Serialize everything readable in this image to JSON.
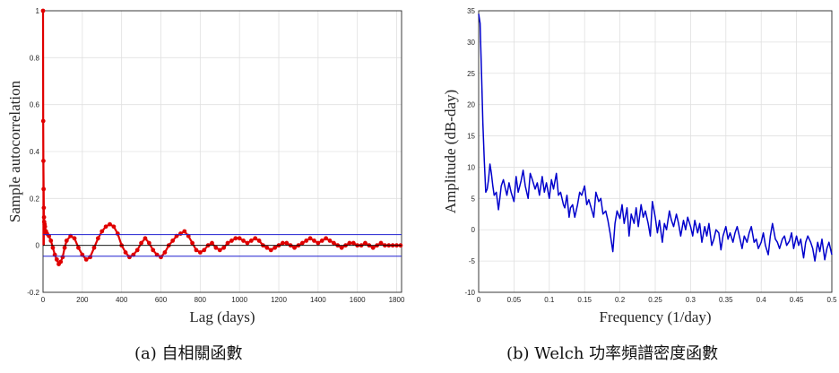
{
  "chart_data": [
    {
      "type": "scatter",
      "xlabel": "Lag (days)",
      "ylabel": "Sample autocorrelation",
      "xlim": [
        0,
        1825
      ],
      "ylim": [
        -0.2,
        1.0
      ],
      "xticks": [
        "0",
        "200",
        "400",
        "600",
        "800",
        "1000",
        "1200",
        "1400",
        "1600",
        "1800"
      ],
      "yticks": [
        "-0.2",
        "0",
        "0.2",
        "0.4",
        "0.6",
        "0.8",
        "1"
      ],
      "grid": true,
      "confidence_bounds": [
        0.046,
        -0.046
      ],
      "marker_color": "#e00000",
      "bound_color": "#2020d0",
      "caption": "(a) 自相關函數",
      "x": [
        0,
        1,
        2,
        3,
        4,
        5,
        6,
        8,
        10,
        15,
        20,
        30,
        40,
        50,
        60,
        70,
        80,
        90,
        100,
        110,
        120,
        140,
        160,
        180,
        200,
        220,
        240,
        260,
        280,
        300,
        320,
        340,
        360,
        380,
        400,
        420,
        440,
        460,
        480,
        500,
        520,
        540,
        560,
        580,
        600,
        620,
        640,
        660,
        680,
        700,
        720,
        740,
        760,
        780,
        800,
        820,
        840,
        860,
        880,
        900,
        920,
        940,
        960,
        980,
        1000,
        1020,
        1040,
        1060,
        1080,
        1100,
        1120,
        1140,
        1160,
        1180,
        1200,
        1220,
        1240,
        1260,
        1280,
        1300,
        1320,
        1340,
        1360,
        1380,
        1400,
        1420,
        1440,
        1460,
        1480,
        1500,
        1520,
        1540,
        1560,
        1580,
        1600,
        1620,
        1640,
        1660,
        1680,
        1700,
        1720,
        1740,
        1760,
        1780,
        1800,
        1820
      ],
      "y": [
        1.0,
        0.53,
        0.36,
        0.24,
        0.16,
        0.12,
        0.1,
        0.09,
        0.08,
        0.06,
        0.05,
        0.04,
        0.02,
        -0.01,
        -0.04,
        -0.06,
        -0.08,
        -0.07,
        -0.05,
        -0.01,
        0.02,
        0.04,
        0.03,
        -0.01,
        -0.04,
        -0.06,
        -0.05,
        -0.01,
        0.03,
        0.06,
        0.08,
        0.09,
        0.08,
        0.05,
        0.0,
        -0.03,
        -0.05,
        -0.04,
        -0.02,
        0.01,
        0.03,
        0.01,
        -0.02,
        -0.04,
        -0.05,
        -0.03,
        0.0,
        0.02,
        0.04,
        0.05,
        0.06,
        0.04,
        0.01,
        -0.02,
        -0.03,
        -0.02,
        0.0,
        0.01,
        -0.01,
        -0.02,
        -0.01,
        0.01,
        0.02,
        0.03,
        0.03,
        0.02,
        0.01,
        0.02,
        0.03,
        0.02,
        0.0,
        -0.01,
        -0.02,
        -0.01,
        0.0,
        0.01,
        0.01,
        0.0,
        -0.01,
        0.0,
        0.01,
        0.02,
        0.03,
        0.02,
        0.01,
        0.02,
        0.03,
        0.02,
        0.01,
        0.0,
        -0.01,
        0.0,
        0.01,
        0.01,
        0.0,
        0.0,
        0.01,
        0.0,
        -0.01,
        0.0,
        0.01,
        0.0,
        0.0,
        0.0,
        0.0,
        0.0
      ]
    },
    {
      "type": "line",
      "xlabel": "Frequency (1/day)",
      "ylabel": "Amplitude (dB-day)",
      "xlim": [
        0,
        0.5
      ],
      "ylim": [
        -10,
        35
      ],
      "xticks": [
        "0",
        "0.05",
        "0.1",
        "0.15",
        "0.2",
        "0.25",
        "0.3",
        "0.35",
        "0.4",
        "0.45",
        "0.5"
      ],
      "yticks": [
        "-10",
        "-5",
        "0",
        "5",
        "10",
        "15",
        "20",
        "25",
        "30",
        "35"
      ],
      "grid": true,
      "line_color": "#0000cc",
      "caption": "(b) Welch 功率頻譜密度函數",
      "x": [
        0,
        0.002,
        0.004,
        0.006,
        0.008,
        0.01,
        0.012,
        0.014,
        0.016,
        0.018,
        0.02,
        0.022,
        0.025,
        0.028,
        0.03,
        0.032,
        0.035,
        0.038,
        0.04,
        0.043,
        0.046,
        0.05,
        0.053,
        0.056,
        0.06,
        0.063,
        0.066,
        0.07,
        0.073,
        0.076,
        0.08,
        0.083,
        0.086,
        0.09,
        0.093,
        0.096,
        0.1,
        0.103,
        0.106,
        0.11,
        0.113,
        0.116,
        0.12,
        0.122,
        0.125,
        0.128,
        0.13,
        0.133,
        0.136,
        0.14,
        0.143,
        0.146,
        0.15,
        0.153,
        0.156,
        0.16,
        0.163,
        0.166,
        0.17,
        0.173,
        0.176,
        0.18,
        0.183,
        0.186,
        0.19,
        0.193,
        0.196,
        0.2,
        0.203,
        0.206,
        0.21,
        0.213,
        0.216,
        0.22,
        0.223,
        0.226,
        0.23,
        0.233,
        0.236,
        0.24,
        0.243,
        0.246,
        0.25,
        0.253,
        0.256,
        0.26,
        0.263,
        0.266,
        0.27,
        0.273,
        0.276,
        0.28,
        0.283,
        0.286,
        0.29,
        0.293,
        0.296,
        0.3,
        0.303,
        0.306,
        0.31,
        0.313,
        0.316,
        0.32,
        0.323,
        0.326,
        0.33,
        0.333,
        0.336,
        0.34,
        0.343,
        0.346,
        0.35,
        0.353,
        0.356,
        0.36,
        0.363,
        0.366,
        0.37,
        0.373,
        0.376,
        0.38,
        0.383,
        0.386,
        0.39,
        0.393,
        0.396,
        0.4,
        0.403,
        0.406,
        0.41,
        0.413,
        0.416,
        0.42,
        0.423,
        0.426,
        0.43,
        0.433,
        0.436,
        0.44,
        0.443,
        0.446,
        0.45,
        0.453,
        0.456,
        0.46,
        0.463,
        0.466,
        0.47,
        0.473,
        0.476,
        0.48,
        0.483,
        0.486,
        0.49,
        0.493,
        0.496,
        0.5
      ],
      "y": [
        34.5,
        33,
        25,
        17,
        11,
        6,
        6.5,
        8,
        10.5,
        9,
        7,
        5.5,
        6,
        3.2,
        5,
        7,
        8,
        6.5,
        5.5,
        7.5,
        6,
        4.5,
        8.5,
        6,
        7.8,
        9.5,
        7,
        5,
        9,
        8,
        6.5,
        7.5,
        5.5,
        8.5,
        6,
        7.5,
        5,
        8,
        6.5,
        9,
        5.5,
        6,
        4,
        3.5,
        5.5,
        2,
        3.5,
        4,
        2,
        4,
        6,
        5.5,
        7,
        4,
        4.8,
        3.2,
        2,
        6,
        4.5,
        5,
        2.5,
        3,
        1.5,
        -0.5,
        -3.5,
        1,
        3,
        1.8,
        4,
        1,
        3.5,
        -1,
        2.5,
        1,
        3.5,
        0.5,
        4,
        2,
        3,
        1,
        -1,
        4.5,
        2,
        -0.5,
        1.5,
        -2,
        1,
        0,
        3,
        1.5,
        0.5,
        2.5,
        1,
        -1,
        1.5,
        0,
        2,
        0.5,
        -1,
        1.5,
        -0.5,
        1,
        -2,
        0.5,
        -1,
        1,
        -2.5,
        -1.5,
        0,
        -0.5,
        -3.2,
        -1,
        0.5,
        -1.5,
        -0.5,
        -2,
        -0.5,
        0.5,
        -1.5,
        -3,
        -1,
        -2,
        -0.5,
        0.5,
        -2,
        -1.5,
        -3,
        -2,
        -0.5,
        -2.5,
        -4,
        -1,
        1,
        -1.5,
        -2,
        -3,
        -1.5,
        -1,
        -2.5,
        -1.8,
        -0.5,
        -3,
        -1,
        -2.5,
        -1.5,
        -4.5,
        -2,
        -1,
        -2,
        -3,
        -5,
        -2,
        -3.5,
        -1.5,
        -4.8,
        -3,
        -2,
        -4
      ]
    }
  ]
}
